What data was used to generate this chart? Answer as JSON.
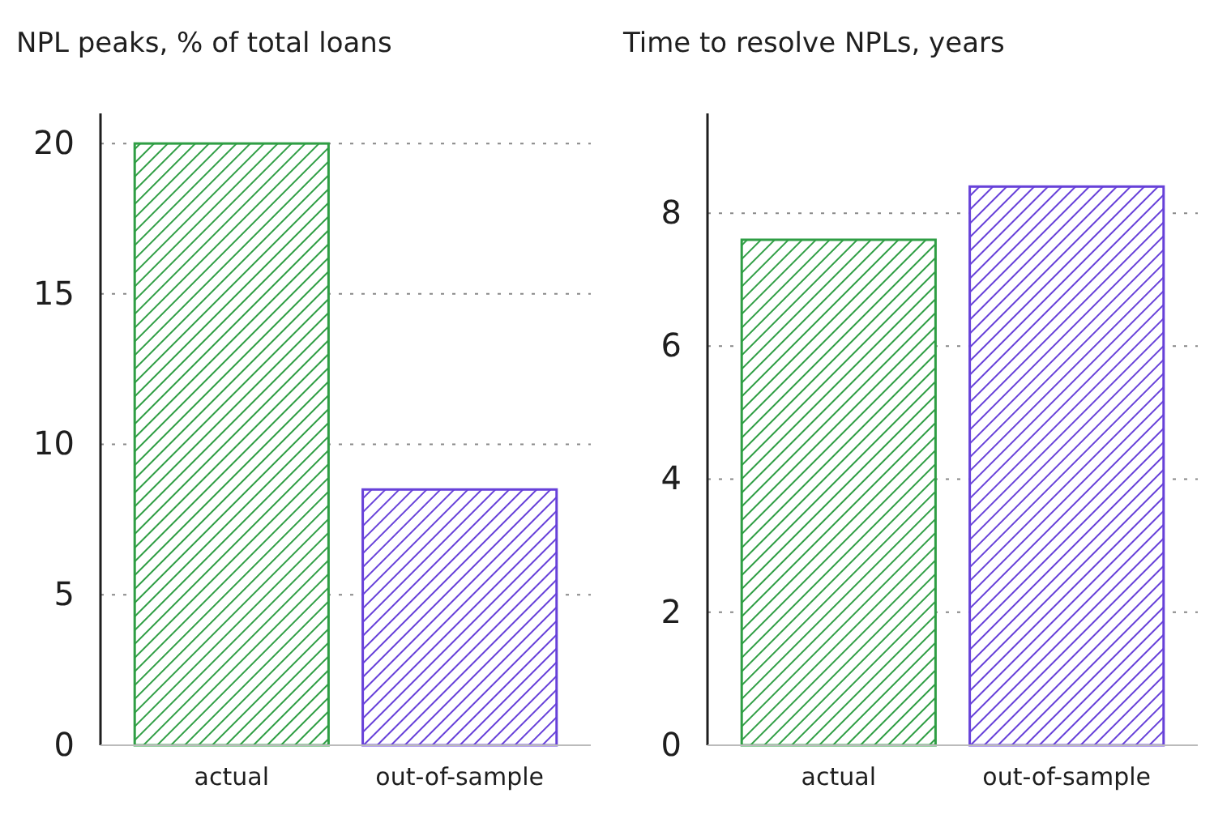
{
  "chart_data": [
    {
      "type": "bar",
      "title": "NPL peaks, % of total loans",
      "categories": [
        "actual",
        "out-of-sample"
      ],
      "values": [
        20,
        8.5
      ],
      "colors": [
        "#2f9e44",
        "#6741d9"
      ],
      "ylim": [
        0,
        21
      ],
      "yticks": [
        0,
        5,
        10,
        15,
        20
      ],
      "grid": "y"
    },
    {
      "type": "bar",
      "title": "Time to resolve NPLs, years",
      "categories": [
        "actual",
        "out-of-sample"
      ],
      "values": [
        7.6,
        8.4
      ],
      "colors": [
        "#2f9e44",
        "#6741d9"
      ],
      "ylim": [
        0,
        9.5
      ],
      "yticks": [
        0,
        2,
        4,
        6,
        8
      ],
      "grid": "y"
    }
  ]
}
